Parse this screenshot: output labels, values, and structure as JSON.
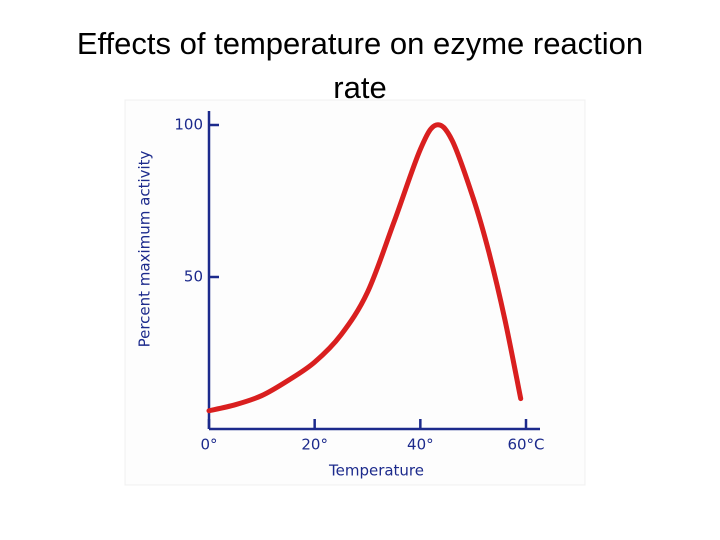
{
  "chart_data": {
    "type": "line",
    "title": "Effects of temperature on ezyme reaction rate",
    "x_label": "Temperature",
    "y_label": "Percent maximum activity",
    "x": [
      0,
      5,
      10,
      15,
      20,
      25,
      30,
      35,
      40,
      43,
      46,
      50,
      53,
      56,
      59
    ],
    "series": [
      {
        "color": "#d91f1f",
        "values": [
          6,
          8,
          11,
          16,
          22,
          31,
          45,
          68,
          92,
          100,
          95,
          76,
          58,
          36,
          10
        ]
      }
    ],
    "xlim": [
      0,
      60
    ],
    "xticks": [
      {
        "value": 0,
        "label": "0°"
      },
      {
        "value": 20,
        "label": "20°"
      },
      {
        "value": 40,
        "label": "40°"
      },
      {
        "value": 60,
        "label": "60°C"
      }
    ],
    "ylim": [
      0,
      100
    ],
    "yticks": [
      50,
      100
    ],
    "axis_color": "#1c2a8c"
  }
}
